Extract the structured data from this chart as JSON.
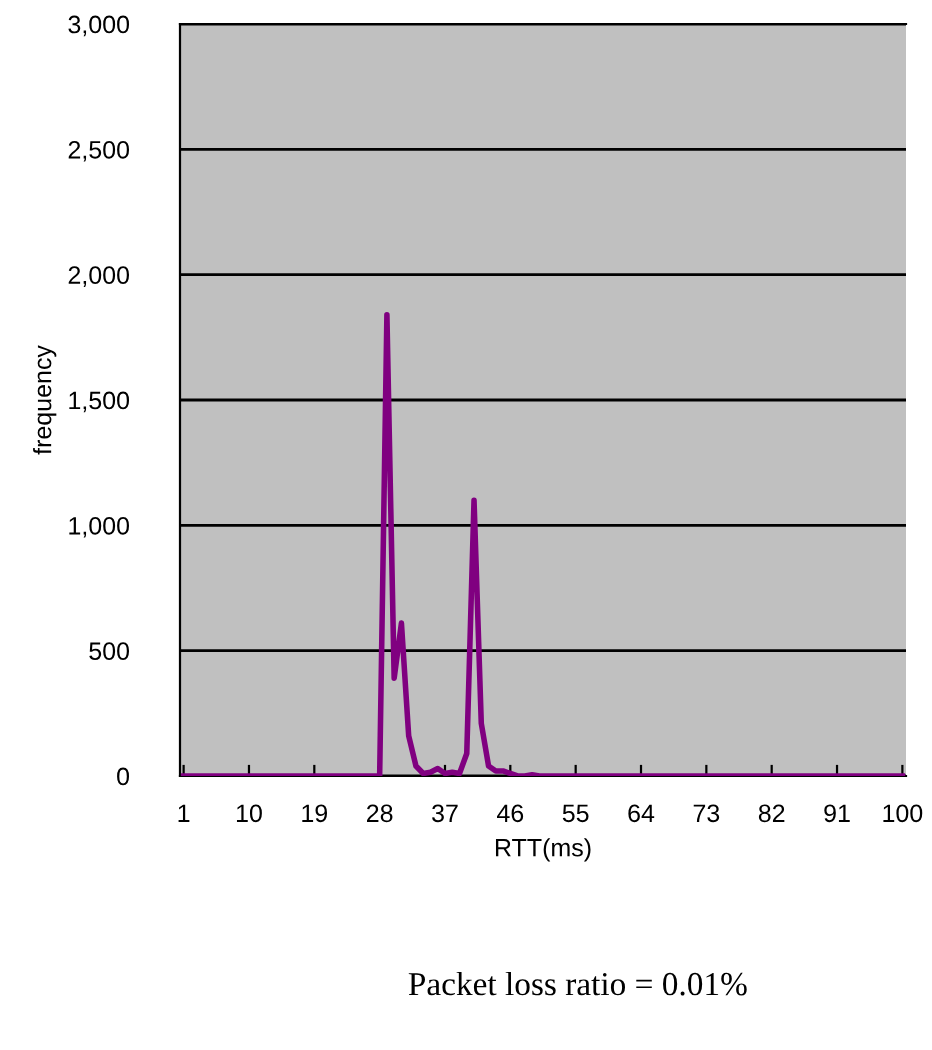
{
  "chart_data": {
    "type": "line",
    "xlabel": "RTT(ms)",
    "ylabel": "frequency",
    "x": [
      1,
      2,
      3,
      4,
      5,
      6,
      7,
      8,
      9,
      10,
      11,
      12,
      13,
      14,
      15,
      16,
      17,
      18,
      19,
      20,
      21,
      22,
      23,
      24,
      25,
      26,
      27,
      28,
      29,
      30,
      31,
      32,
      33,
      34,
      35,
      36,
      37,
      38,
      39,
      40,
      41,
      42,
      43,
      44,
      45,
      46,
      47,
      48,
      49,
      50,
      51,
      52,
      53,
      54,
      55,
      56,
      57,
      58,
      59,
      60,
      61,
      62,
      63,
      64,
      65,
      66,
      67,
      68,
      69,
      70,
      71,
      72,
      73,
      74,
      75,
      76,
      77,
      78,
      79,
      80,
      81,
      82,
      83,
      84,
      85,
      86,
      87,
      88,
      89,
      90,
      91,
      92,
      93,
      94,
      95,
      96,
      97,
      98,
      99,
      100
    ],
    "series": [
      {
        "color": "#800080",
        "values": [
          0,
          0,
          0,
          0,
          0,
          0,
          0,
          0,
          0,
          0,
          0,
          0,
          0,
          0,
          0,
          0,
          0,
          0,
          0,
          0,
          0,
          0,
          0,
          0,
          0,
          0,
          0,
          0,
          1840,
          390,
          610,
          160,
          40,
          10,
          15,
          30,
          10,
          15,
          10,
          90,
          1100,
          210,
          40,
          20,
          20,
          10,
          0,
          0,
          5,
          0,
          0,
          0,
          0,
          0,
          0,
          0,
          0,
          0,
          0,
          0,
          0,
          0,
          0,
          0,
          0,
          0,
          0,
          0,
          0,
          0,
          0,
          0,
          0,
          0,
          0,
          0,
          0,
          0,
          0,
          0,
          0,
          0,
          0,
          0,
          0,
          0,
          0,
          0,
          0,
          0,
          0,
          0,
          0,
          0,
          0,
          0,
          0,
          0,
          0,
          0
        ]
      }
    ],
    "xlim": [
      0.5,
      100.5
    ],
    "xticks": [
      1,
      10,
      19,
      28,
      37,
      46,
      55,
      64,
      73,
      82,
      91,
      100
    ],
    "ylim": [
      0,
      3000
    ],
    "yticks": [
      0,
      500,
      {
        "value": 1000,
        "label": "1,000"
      },
      {
        "value": 1500,
        "label": "1,500"
      },
      {
        "value": 2000,
        "label": "2,000"
      },
      {
        "value": 2500,
        "label": "2,500"
      },
      {
        "value": 3000,
        "label": "3,000"
      }
    ],
    "grid": "y",
    "legend": false,
    "marker": "none",
    "line_style": "solid",
    "annotations": [
      "Packet loss ratio = 0.01%"
    ]
  }
}
